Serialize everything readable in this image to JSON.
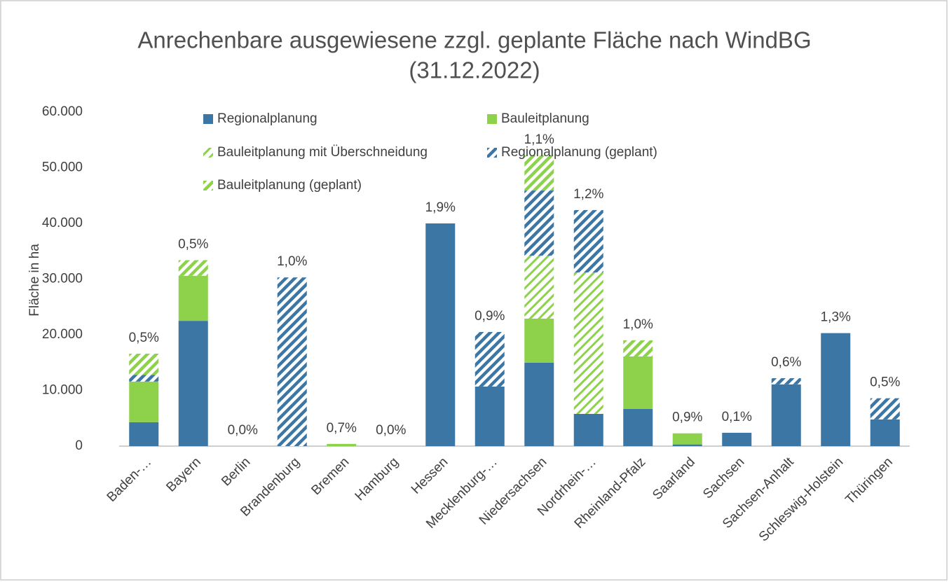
{
  "chart_data": {
    "type": "stacked_bar",
    "title": [
      "Anrechenbare ausgewiesene zzgl. geplante Fläche nach WindBG",
      "(31.12.2022)"
    ],
    "y_label": "Fläche in ha",
    "categories": [
      "Baden-…",
      "Bayern",
      "Berlin",
      "Brandenburg",
      "Bremen",
      "Hamburg",
      "Hessen",
      "Mecklenburg-…",
      "Niedersachsen",
      "Nordrhein-…",
      "Rheinland-Pfalz",
      "Saarland",
      "Sachsen",
      "Sachsen-Anhalt",
      "Schleswig-Holstein",
      "Thüringen"
    ],
    "series": [
      {
        "name": "Regionalplanung",
        "color": "#3b76a4",
        "hatched": false,
        "values": [
          4300,
          22500,
          0,
          0,
          0,
          0,
          40000,
          10700,
          15000,
          5800,
          6700,
          300,
          2400,
          11100,
          20300,
          4800
        ]
      },
      {
        "name": "Bauleitplanung",
        "color": "#8ed14b",
        "hatched": false,
        "values": [
          7300,
          8100,
          0,
          0,
          400,
          0,
          0,
          0,
          7900,
          0,
          9400,
          2000,
          0,
          0,
          0,
          0
        ]
      },
      {
        "name": "Bauleitplanung mit Überschneidung",
        "color": "#8ed14b",
        "hatched": true,
        "values": [
          0,
          0,
          0,
          0,
          0,
          0,
          0,
          0,
          11300,
          25400,
          0,
          0,
          0,
          0,
          0,
          0
        ]
      },
      {
        "name": "Regionalplanung (geplant)",
        "color": "#3b76a4",
        "hatched": true,
        "values": [
          1200,
          0,
          0,
          30300,
          0,
          0,
          0,
          9800,
          11700,
          11200,
          0,
          0,
          0,
          1100,
          0,
          3800
        ]
      },
      {
        "name": "Bauleitplanung (geplant)",
        "color": "#8ed14b",
        "hatched": true,
        "values": [
          3800,
          2800,
          0,
          0,
          0,
          0,
          0,
          0,
          6300,
          0,
          2900,
          0,
          0,
          0,
          0,
          0
        ]
      }
    ],
    "top_labels": [
      "0,5%",
      "0,5%",
      "0,0%",
      "1,0%",
      "0,7%",
      "0,0%",
      "1,9%",
      "0,9%",
      "1,1%",
      "1,2%",
      "1,0%",
      "0,9%",
      "0,1%",
      "0,6%",
      "1,3%",
      "0,5%"
    ],
    "ylim": [
      0,
      60000
    ],
    "yticks": [
      0,
      {
        "value": 10000,
        "label": "10.000"
      },
      {
        "value": 20000,
        "label": "20.000"
      },
      {
        "value": 30000,
        "label": "30.000"
      },
      {
        "value": 40000,
        "label": "40.000"
      },
      {
        "value": 50000,
        "label": "50.000"
      },
      {
        "value": 60000,
        "label": "60.000"
      }
    ],
    "grid": false,
    "legend": "top"
  }
}
